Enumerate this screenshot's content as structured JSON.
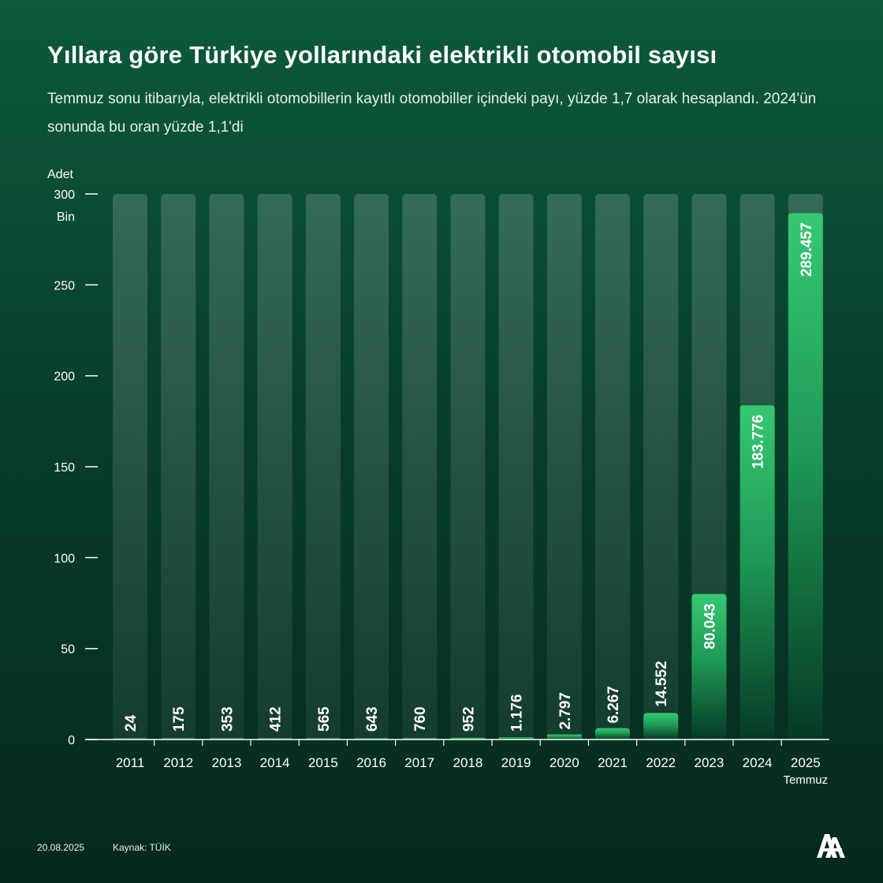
{
  "header": {
    "title": "Yıllara göre Türkiye yollarındaki elektrikli otomobil sayısı",
    "subtitle": "Temmuz sonu itibarıyla, elektrikli otomobillerin kayıtlı otomobiller içindeki payı, yüzde 1,7 olarak hesaplandı. 2024'ün sonunda bu oran yüzde 1,1'di"
  },
  "chart_data": {
    "type": "bar",
    "categories": [
      "2011",
      "2012",
      "2013",
      "2014",
      "2015",
      "2016",
      "2017",
      "2018",
      "2019",
      "2020",
      "2021",
      "2022",
      "2023",
      "2024",
      "2025"
    ],
    "category_sublabels": {
      "2025": "Temmuz"
    },
    "values": [
      24,
      175,
      353,
      412,
      565,
      643,
      760,
      952,
      1176,
      2797,
      6267,
      14552,
      80043,
      183776,
      289457
    ],
    "data_labels": [
      "24",
      "175",
      "353",
      "412",
      "565",
      "643",
      "760",
      "952",
      "1.176",
      "2.797",
      "6.267",
      "14.552",
      "80.043",
      "183.776",
      "289.457"
    ],
    "y_axis_title": "Adet",
    "y_unit_label": "Bin",
    "y_ticks": [
      0,
      50,
      100,
      150,
      200,
      250,
      300
    ],
    "ylim": [
      0,
      300000
    ],
    "grid": false,
    "colors": {
      "bar": "#2fbf68",
      "bar_dark": "#0b4a30",
      "track": "#3a6c5c",
      "label": "#ffffff"
    }
  },
  "footer": {
    "date": "20.08.2025",
    "source": "Kaynak: TÜİK",
    "logo": "AA-logo-icon"
  }
}
